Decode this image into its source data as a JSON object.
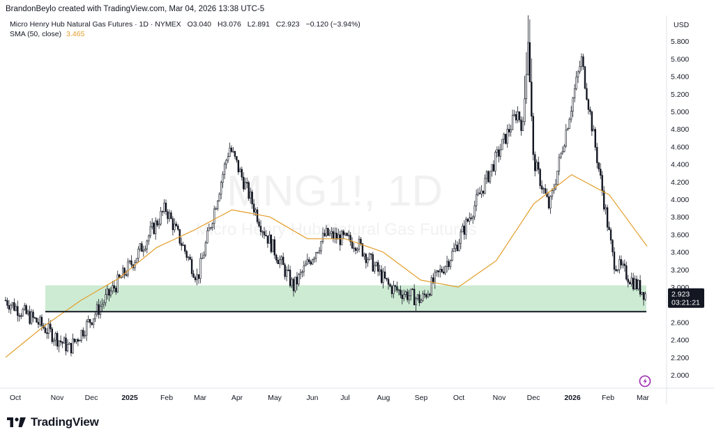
{
  "header": {
    "credit": "BrandonBeylo created with TradingView.com, Mar 04, 2026 13:38 UTC-5"
  },
  "legend": {
    "instrument": "Micro Henry Hub Natural Gas Futures · 1D · NYMEX",
    "open": "O3.040",
    "high": "H3.076",
    "low": "L2.891",
    "close": "C2.923",
    "change": "−0.120 (−3.94%)",
    "sma_label": "SMA (50, close)",
    "sma_value": "3.465"
  },
  "watermark": {
    "symbol": "MNG1!, 1D",
    "name": "Micro Henry Hub Natural Gas Futures"
  },
  "price_axis": {
    "currency": "USD",
    "last_price": "2.923",
    "countdown": "03:21:21"
  },
  "footer": {
    "brand": "TradingView"
  },
  "colors": {
    "candle": "#131722",
    "sma": "#e39d2a",
    "zone": "#cdebd3",
    "support_line": "#131722",
    "price_label_bg": "#131722",
    "alert_icon": "#9c27b0"
  },
  "chart_data": {
    "type": "candlestick",
    "instrument": "Micro Henry Hub Natural Gas Futures",
    "exchange": "NYMEX",
    "timeframe": "1D",
    "ylim": [
      1.85,
      5.9
    ],
    "y_ticks": [
      2.0,
      2.2,
      2.4,
      2.6,
      3.0,
      3.2,
      3.4,
      3.6,
      3.8,
      4.0,
      4.2,
      4.4,
      4.6,
      4.8,
      5.0,
      5.2,
      5.4,
      5.6,
      5.8
    ],
    "x_ticks": [
      "Oct",
      "Nov",
      "Dec",
      "2025",
      "Feb",
      "Mar",
      "Apr",
      "May",
      "Jun",
      "Jul",
      "Aug",
      "Sep",
      "Oct",
      "Nov",
      "Dec",
      "2026",
      "Feb",
      "Mar"
    ],
    "grid": false,
    "zone": {
      "from": 2.72,
      "to": 3.02
    },
    "support_level": 2.72,
    "last_close": 2.923,
    "price_path": [
      {
        "t": "Oct",
        "p": 2.85
      },
      {
        "t": "mid-Oct",
        "p": 2.6
      },
      {
        "t": "late Oct",
        "p": 2.3
      },
      {
        "t": "Nov",
        "p": 2.8
      },
      {
        "t": "Dec",
        "p": 3.3
      },
      {
        "t": "2025",
        "p": 3.9
      },
      {
        "t": "Feb",
        "p": 3.1
      },
      {
        "t": "Mar",
        "p": 4.6
      },
      {
        "t": "Apr",
        "p": 3.7
      },
      {
        "t": "May",
        "p": 3.0
      },
      {
        "t": "Jun",
        "p": 3.6
      },
      {
        "t": "Jul",
        "p": 3.5
      },
      {
        "t": "Aug",
        "p": 3.0
      },
      {
        "t": "Sep",
        "p": 2.85
      },
      {
        "t": "Oct",
        "p": 3.4
      },
      {
        "t": "Nov",
        "p": 4.2
      },
      {
        "t": "Dec",
        "p": 5.0
      },
      {
        "t": "2026",
        "p": 3.9
      },
      {
        "t": "Jan spike",
        "p": 5.6
      },
      {
        "t": "Feb",
        "p": 3.3
      },
      {
        "t": "Mar",
        "p": 2.92
      }
    ],
    "sma_path": [
      {
        "t": "Oct",
        "p": 2.2
      },
      {
        "t": "Nov",
        "p": 2.55
      },
      {
        "t": "Dec",
        "p": 2.85
      },
      {
        "t": "2025",
        "p": 3.1
      },
      {
        "t": "Feb",
        "p": 3.45
      },
      {
        "t": "Mar",
        "p": 3.65
      },
      {
        "t": "Apr",
        "p": 3.88
      },
      {
        "t": "May",
        "p": 3.8
      },
      {
        "t": "Jun",
        "p": 3.55
      },
      {
        "t": "Jul",
        "p": 3.55
      },
      {
        "t": "Aug",
        "p": 3.4
      },
      {
        "t": "Sep",
        "p": 3.08
      },
      {
        "t": "Oct",
        "p": 3.0
      },
      {
        "t": "Nov",
        "p": 3.3
      },
      {
        "t": "Dec",
        "p": 3.95
      },
      {
        "t": "2026",
        "p": 4.28
      },
      {
        "t": "Feb",
        "p": 4.05
      },
      {
        "t": "Mar",
        "p": 3.465
      }
    ]
  }
}
